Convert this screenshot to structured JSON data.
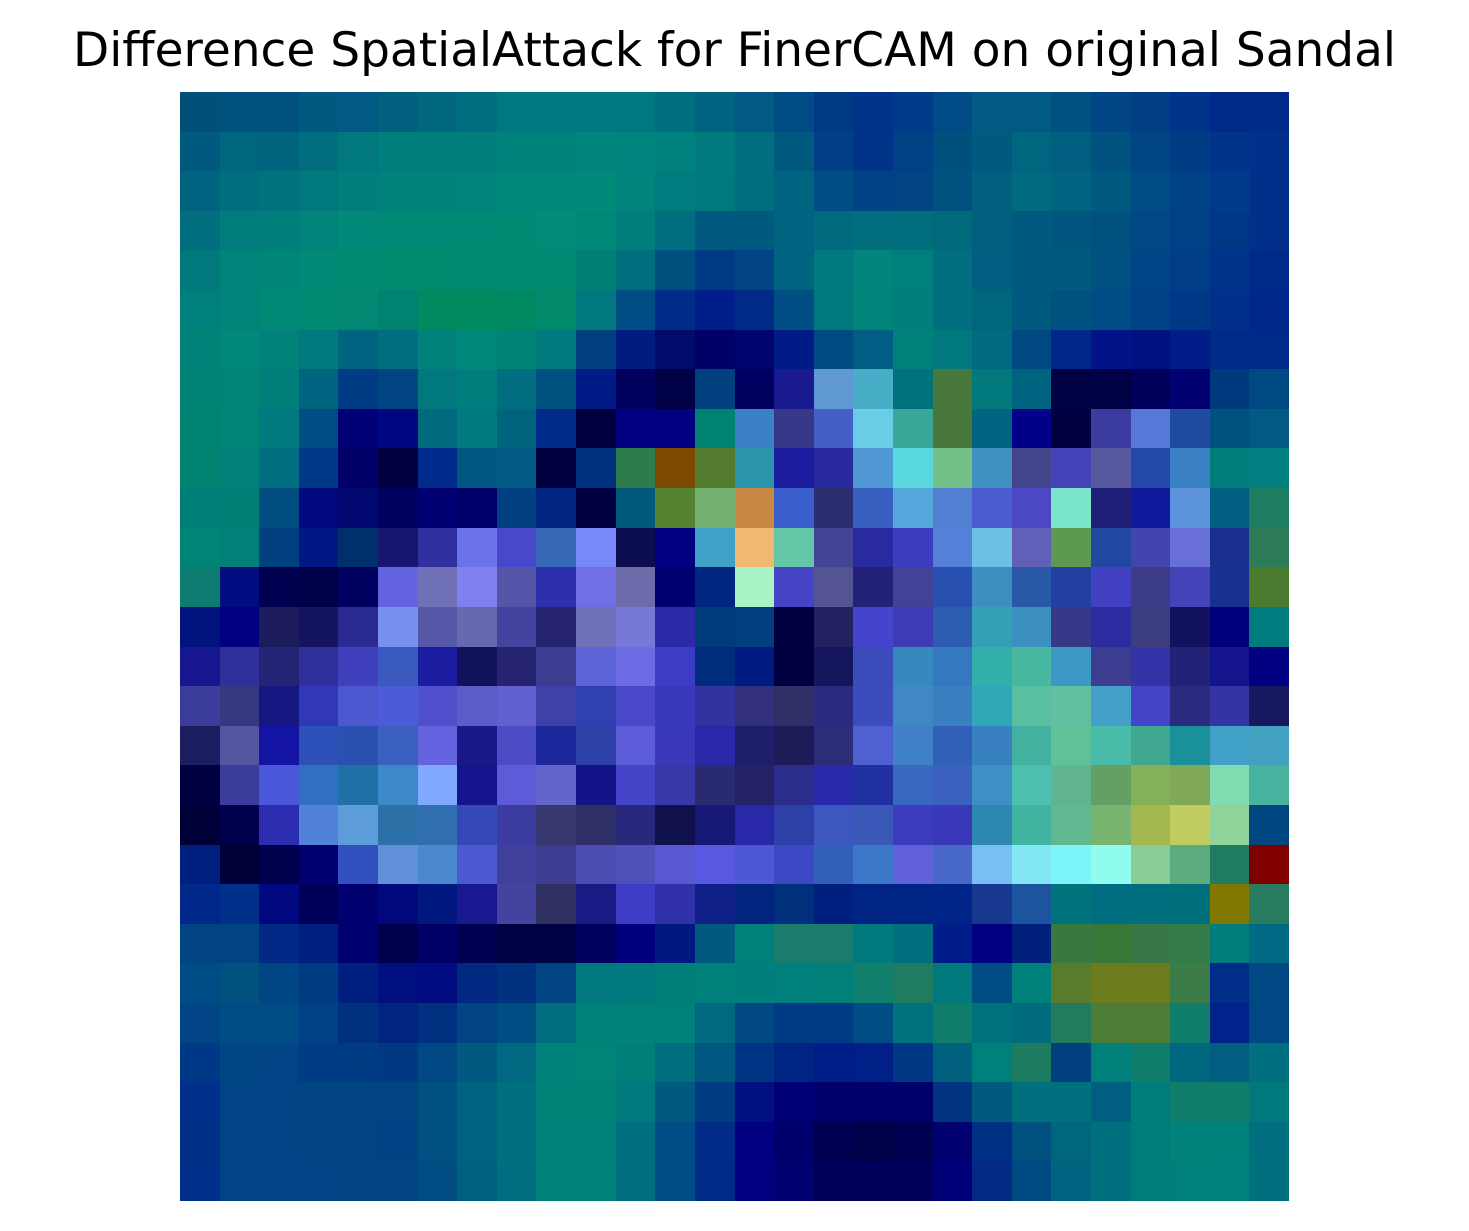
{
  "chart_data": {
    "type": "heatmap",
    "title": "Difference SpatialAttack for FinerCAM on original Sandal",
    "xlabel": "",
    "ylabel": "",
    "axes_visible": false,
    "grid": false,
    "rows": 28,
    "cols": 28,
    "cells": [
      [
        "#00507a",
        "#005080",
        "#005080",
        "#005a80",
        "#005a84",
        "#00607e",
        "#00677e",
        "#006e80",
        "#007880",
        "#007a80",
        "#007a80",
        "#007880",
        "#006e80",
        "#006480",
        "#005a84",
        "#004b84",
        "#003a86",
        "#00338a",
        "#003a88",
        "#004b86",
        "#005a84",
        "#005a84",
        "#005082",
        "#004684",
        "#003e86",
        "#00338a",
        "#002a8a",
        "#002a88"
      ],
      [
        "#005a80",
        "#006680",
        "#00647e",
        "#006e7e",
        "#00787e",
        "#007e7e",
        "#007e7e",
        "#007e7c",
        "#00827c",
        "#00827c",
        "#00847c",
        "#00827e",
        "#00807e",
        "#007a7c",
        "#006e7c",
        "#005a80",
        "#003e88",
        "#003488",
        "#004084",
        "#00507e",
        "#005a80",
        "#006680",
        "#005e80",
        "#005080",
        "#004684",
        "#003c86",
        "#00338a",
        "#00308a"
      ],
      [
        "#006480",
        "#006e7e",
        "#00747e",
        "#00787c",
        "#007e7c",
        "#00827c",
        "#00827c",
        "#00847a",
        "#00887a",
        "#00887a",
        "#008a7a",
        "#00847c",
        "#007c7e",
        "#00787c",
        "#006e7e",
        "#006480",
        "#004c84",
        "#004284",
        "#004484",
        "#005080",
        "#00607e",
        "#006a80",
        "#006480",
        "#005a80",
        "#004c84",
        "#004286",
        "#003a88",
        "#00308a"
      ],
      [
        "#006e7e",
        "#007c7c",
        "#007e7c",
        "#00847a",
        "#008878",
        "#008a76",
        "#008a76",
        "#008a76",
        "#008c74",
        "#008c76",
        "#008876",
        "#007e7c",
        "#006e7e",
        "#005a80",
        "#005a80",
        "#006480",
        "#006a7e",
        "#006e7c",
        "#006e7c",
        "#006a7c",
        "#00607e",
        "#005a80",
        "#00567e",
        "#005080",
        "#004884",
        "#004086",
        "#003888",
        "#00308a"
      ],
      [
        "#00787c",
        "#00847a",
        "#008678",
        "#008a76",
        "#008a72",
        "#008a70",
        "#008a70",
        "#008a72",
        "#008c72",
        "#008a74",
        "#008074",
        "#00707e",
        "#00507e",
        "#003a86",
        "#004484",
        "#006480",
        "#007a7e",
        "#00847c",
        "#00807c",
        "#006e7e",
        "#005e80",
        "#005a80",
        "#005a80",
        "#005082",
        "#004686",
        "#003c88",
        "#00348a",
        "#002a8a"
      ],
      [
        "#00807c",
        "#00847a",
        "#008a76",
        "#008a74",
        "#008872",
        "#008270",
        "#008a60",
        "#008a60",
        "#008a62",
        "#008a6a",
        "#00787e",
        "#004c84",
        "#002c88",
        "#001e8a",
        "#002a88",
        "#004e84",
        "#00787c",
        "#00847a",
        "#007e7c",
        "#006e7e",
        "#00667e",
        "#005a80",
        "#005080",
        "#004c84",
        "#004286",
        "#003888",
        "#00308a",
        "#00288a"
      ],
      [
        "#008278",
        "#008878",
        "#00827a",
        "#00787c",
        "#006480",
        "#006e80",
        "#00827a",
        "#00887a",
        "#008276",
        "#007a7c",
        "#00407e",
        "#001c80",
        "#000c6a",
        "#000066",
        "#00066e",
        "#001a88",
        "#004a82",
        "#005e84",
        "#00807a",
        "#00787e",
        "#006a80",
        "#004880",
        "#00288a",
        "#001488",
        "#001080",
        "#001c86",
        "#002a88",
        "#002a8a"
      ],
      [
        "#008274",
        "#008476",
        "#007e7a",
        "#006480",
        "#003c84",
        "#004484",
        "#00787e",
        "#007e7e",
        "#006e80",
        "#005080",
        "#001a86",
        "#00005e",
        "#000046",
        "#00407e",
        "#000060",
        "#1a1a90",
        "#6098d4",
        "#48aec8",
        "#00727e",
        "#48783c",
        "#00787c",
        "#006480",
        "#000044",
        "#000044",
        "#00005c",
        "#000070",
        "#003a7e",
        "#004a84"
      ],
      [
        "#008270",
        "#008478",
        "#007a7e",
        "#004c84",
        "#000076",
        "#000680",
        "#006a7e",
        "#007a7e",
        "#00647e",
        "#002a88",
        "#000040",
        "#000080",
        "#000080",
        "#008270",
        "#3c80c8",
        "#383888",
        "#4460c8",
        "#6acde6",
        "#38a898",
        "#48783c",
        "#006480",
        "#000088",
        "#000040",
        "#3c3ca0",
        "#5878d8",
        "#1e4aa0",
        "#005080",
        "#005a84"
      ],
      [
        "#008270",
        "#008078",
        "#006e80",
        "#003888",
        "#000068",
        "#000040",
        "#002a8c",
        "#005880",
        "#005a84",
        "#000040",
        "#003080",
        "#2e7c4c",
        "#7c4a00",
        "#547c30",
        "#2c94ac",
        "#1c1ca0",
        "#26289c",
        "#5098d4",
        "#5ad8e0",
        "#74c088",
        "#4090c4",
        "#44448c",
        "#4444b8",
        "#58589e",
        "#2448a8",
        "#3a80c4",
        "#007e7c",
        "#007e80"
      ],
      [
        "#007e78",
        "#008074",
        "#004c80",
        "#000880",
        "#000870",
        "#000060",
        "#000072",
        "#00006a",
        "#004080",
        "#002480",
        "#000040",
        "#005a7c",
        "#548230",
        "#74b070",
        "#c88844",
        "#3a5ecc",
        "#2c2c70",
        "#3860c0",
        "#54a8dc",
        "#5480d4",
        "#4c5cd0",
        "#4c48c4",
        "#7ae4c8",
        "#1e1e78",
        "#10189c",
        "#5c92dc",
        "#005e80",
        "#1e7c60"
      ],
      [
        "#008478",
        "#008078",
        "#004080",
        "#001884",
        "#00306c",
        "#16166e",
        "#3030a0",
        "#6a74e8",
        "#4848cc",
        "#3868b8",
        "#7888f8",
        "#0c0c50",
        "#000080",
        "#40a0c8",
        "#f0b870",
        "#64c8a8",
        "#444494",
        "#2a2aa0",
        "#3c3cc0",
        "#5480d8",
        "#6cc0e4",
        "#6060b8",
        "#5c9850",
        "#2048a0",
        "#4444b0",
        "#6870d8",
        "#1a3090",
        "#2c7c58"
      ],
      [
        "#0c7c70",
        "#000c80",
        "#000050",
        "#00004a",
        "#000060",
        "#6464e0",
        "#7070b8",
        "#8080f0",
        "#5454a8",
        "#2c30ac",
        "#7070e4",
        "#6c6caa",
        "#000070",
        "#002680",
        "#a8f4c4",
        "#4444c4",
        "#545494",
        "#222278",
        "#424298",
        "#2850b0",
        "#3c90c0",
        "#2858a8",
        "#2240a4",
        "#4040c0",
        "#3c3c88",
        "#4444b8",
        "#183090",
        "#4c7c30"
      ],
      [
        "#001480",
        "#000080",
        "#1c1c5c",
        "#141460",
        "#2a2a90",
        "#7890f0",
        "#5858a8",
        "#6868b0",
        "#4444a0",
        "#262470",
        "#7070b8",
        "#7878d8",
        "#2a2aa8",
        "#003c7c",
        "#003e80",
        "#000040",
        "#222260",
        "#4444cc",
        "#3c3cb4",
        "#2c5cb0",
        "#34a0b8",
        "#3c90c0",
        "#383888",
        "#2c2ca0",
        "#3c3c80",
        "#12125e",
        "#00007c",
        "#007c7e"
      ],
      [
        "#161690",
        "#30309a",
        "#242474",
        "#30309c",
        "#4040bc",
        "#3a5ac0",
        "#1c1ca0",
        "#12125c",
        "#262470",
        "#3c3c90",
        "#5c64d8",
        "#6c6ce4",
        "#3c3cc4",
        "#002c7e",
        "#001a84",
        "#000040",
        "#16165c",
        "#3c4cbc",
        "#3888c0",
        "#3478c0",
        "#30b0a8",
        "#48b8a0",
        "#3c98c4",
        "#3c3c90",
        "#3434a8",
        "#222278",
        "#14148c",
        "#000080"
      ],
      [
        "#3c3c9c",
        "#383880",
        "#161680",
        "#3038b8",
        "#4c58d0",
        "#4c5cd8",
        "#5050cc",
        "#5c5cc8",
        "#6060d0",
        "#4040a8",
        "#3040b0",
        "#4848c8",
        "#3838bc",
        "#3232a0",
        "#32307c",
        "#303068",
        "#2a2a80",
        "#3c4cbc",
        "#4088c4",
        "#3880c0",
        "#30a8b8",
        "#58c0a0",
        "#60c0a0",
        "#44a0c8",
        "#4444c8",
        "#2a2a80",
        "#3434a4",
        "#181860"
      ],
      [
        "#1c1c60",
        "#5454a0",
        "#1414a4",
        "#2c50b8",
        "#2c50b0",
        "#3c60c0",
        "#6464e0",
        "#181888",
        "#4c4cc4",
        "#1c289c",
        "#2c40a8",
        "#5c5cd8",
        "#3838b8",
        "#2828a8",
        "#1e1e6c",
        "#1c1c58",
        "#2c2c78",
        "#5060d0",
        "#4080c8",
        "#3060b8",
        "#3880c0",
        "#44b0a0",
        "#60c098",
        "#48bca8",
        "#40a890",
        "#1a9098",
        "#40a0c8",
        "#44a0c0"
      ],
      [
        "#000040",
        "#3c3c9c",
        "#4858d8",
        "#3070c0",
        "#2070a8",
        "#3c88c8",
        "#80a8fc",
        "#14148c",
        "#5c5cd8",
        "#6464cc",
        "#141488",
        "#4444c8",
        "#3838a8",
        "#2a2a70",
        "#222264",
        "#2c2c8c",
        "#2828ac",
        "#2030a0",
        "#3868c0",
        "#3c60c0",
        "#3c90c4",
        "#4cc0b0",
        "#60b490",
        "#64a064",
        "#84b058",
        "#80a858",
        "#80dcb0",
        "#48b4a0"
      ],
      [
        "#000038",
        "#00004c",
        "#2c2cb0",
        "#5080d8",
        "#5c9cd8",
        "#2c70a8",
        "#3070b0",
        "#3448b8",
        "#3c3ca0",
        "#383870",
        "#303068",
        "#28287c",
        "#10104c",
        "#181878",
        "#2828a8",
        "#2c40a8",
        "#3c58c0",
        "#3a58b8",
        "#3c3cc0",
        "#3838b8",
        "#2c88b0",
        "#40b4a0",
        "#60b890",
        "#78b470",
        "#a4b850",
        "#c0cc60",
        "#90d49c",
        "#004680"
      ],
      [
        "#002080",
        "#000038",
        "#00004c",
        "#000070",
        "#3050c0",
        "#6090d8",
        "#4c88d0",
        "#4c58d0",
        "#40409c",
        "#3c3c90",
        "#4c4cb0",
        "#5050b8",
        "#5858d0",
        "#5858e0",
        "#4c58d4",
        "#3c48c4",
        "#3060b8",
        "#3c78c8",
        "#6060d8",
        "#4868c8",
        "#78c0f4",
        "#84e8f4",
        "#7cf4f8",
        "#90fcf0",
        "#88cc98",
        "#5cac80",
        "#207c60",
        "#800000"
      ],
      [
        "#00288a",
        "#00308a",
        "#000880",
        "#000058",
        "#000070",
        "#00087c",
        "#001880",
        "#181890",
        "#4444a0",
        "#303060",
        "#1a1a84",
        "#3c3cc4",
        "#3030a8",
        "#102088",
        "#002480",
        "#00307c",
        "#002080",
        "#002484",
        "#002484",
        "#002488",
        "#183890",
        "#1c54a0",
        "#00747c",
        "#006e80",
        "#006e7c",
        "#00707c",
        "#807800",
        "#287c60"
      ],
      [
        "#004484",
        "#004482",
        "#002884",
        "#002080",
        "#000070",
        "#00004c",
        "#000068",
        "#000050",
        "#000044",
        "#000044",
        "#000060",
        "#00007c",
        "#001880",
        "#005a80",
        "#00807a",
        "#1a7c6c",
        "#1a7c6c",
        "#007a7c",
        "#006e7c",
        "#001c88",
        "#000080",
        "#00207c",
        "#3a7840",
        "#3a7838",
        "#387848",
        "#347c48",
        "#007c7c",
        "#006a84"
      ],
      [
        "#004c84",
        "#005080",
        "#004684",
        "#003c84",
        "#002080",
        "#001080",
        "#000c80",
        "#002880",
        "#003280",
        "#004484",
        "#00787e",
        "#007a7c",
        "#007e7a",
        "#00807a",
        "#007e7e",
        "#00807c",
        "#008078",
        "#10806c",
        "#207c60",
        "#00787c",
        "#004c84",
        "#00807a",
        "#587c2c",
        "#6c7c1c",
        "#6c7c1c",
        "#3c7c48",
        "#002c8a",
        "#004884"
      ],
      [
        "#004486",
        "#004c84",
        "#004c84",
        "#004084",
        "#003080",
        "#002480",
        "#003080",
        "#004484",
        "#004e84",
        "#006e7e",
        "#00827a",
        "#00827a",
        "#00807a",
        "#006880",
        "#004880",
        "#003a84",
        "#003a84",
        "#004c84",
        "#00727e",
        "#107c6c",
        "#00727e",
        "#006c7e",
        "#207c5c",
        "#4c7c38",
        "#4c7c38",
        "#107c6c",
        "#00228a",
        "#004884"
      ],
      [
        "#003888",
        "#004684",
        "#004486",
        "#003c86",
        "#003c84",
        "#003884",
        "#004884",
        "#005a80",
        "#006880",
        "#00827a",
        "#008478",
        "#007e7a",
        "#006e7e",
        "#005880",
        "#003484",
        "#002484",
        "#001e88",
        "#002088",
        "#003886",
        "#00607e",
        "#00807c",
        "#1c7c60",
        "#00407e",
        "#00807a",
        "#107c6c",
        "#00687e",
        "#005e80",
        "#007080"
      ],
      [
        "#00308a",
        "#004486",
        "#004486",
        "#004484",
        "#004484",
        "#004484",
        "#005082",
        "#006480",
        "#007080",
        "#008276",
        "#008276",
        "#007a7c",
        "#005a80",
        "#003c84",
        "#001080",
        "#000074",
        "#00006c",
        "#00006c",
        "#00006c",
        "#003480",
        "#005a80",
        "#00707e",
        "#00707e",
        "#005e80",
        "#007c7a",
        "#107c6c",
        "#107c6c",
        "#00787c"
      ],
      [
        "#003088",
        "#004486",
        "#004486",
        "#004484",
        "#004484",
        "#004284",
        "#005082",
        "#006480",
        "#00707e",
        "#008278",
        "#008278",
        "#007080",
        "#004c84",
        "#002c88",
        "#000080",
        "#00006c",
        "#000050",
        "#000048",
        "#000050",
        "#000070",
        "#003084",
        "#005080",
        "#00667e",
        "#00707e",
        "#007c7a",
        "#00827a",
        "#00807a",
        "#006e7e"
      ],
      [
        "#00308a",
        "#004486",
        "#004486",
        "#004486",
        "#004484",
        "#004484",
        "#004c82",
        "#006080",
        "#006e80",
        "#008278",
        "#008278",
        "#006e80",
        "#004c84",
        "#002a88",
        "#000080",
        "#000070",
        "#00005c",
        "#00005c",
        "#00005c",
        "#000078",
        "#002a84",
        "#004a84",
        "#006480",
        "#00707e",
        "#007c7c",
        "#00807c",
        "#00807c",
        "#00707e"
      ]
    ]
  }
}
